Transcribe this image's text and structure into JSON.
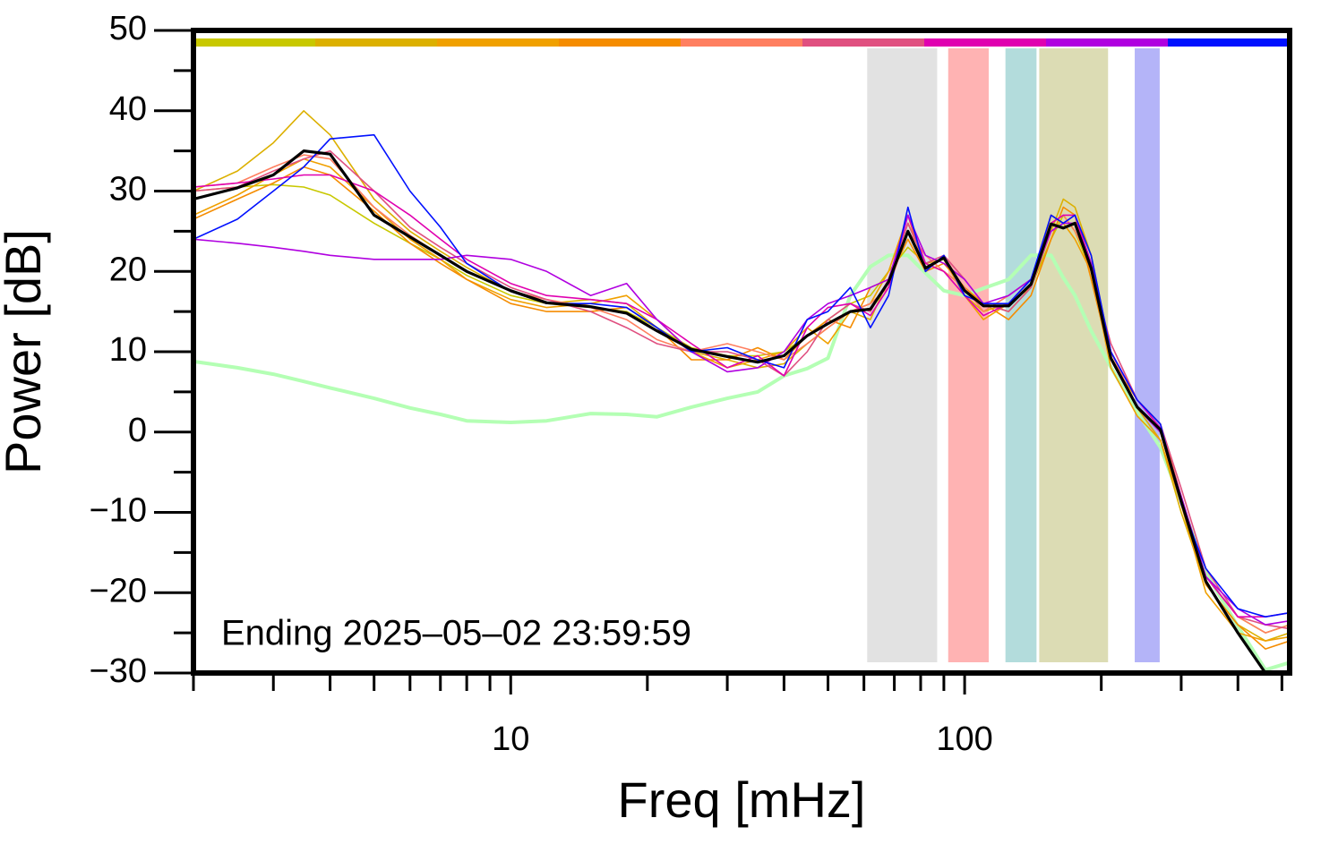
{
  "chart_data": {
    "type": "line",
    "x_label": "Freq [mHz]",
    "y_label": "Power [dB]",
    "annotation": "Ending 2025–05–02 23:59:59",
    "x_log": true,
    "xlim": [
      2,
      520
    ],
    "xticks": [
      10,
      100
    ],
    "xminor_ticks": [
      2,
      3,
      4,
      5,
      6,
      7,
      8,
      9,
      20,
      30,
      40,
      50,
      60,
      70,
      80,
      90,
      200,
      300,
      400,
      500
    ],
    "ylim": [
      -30,
      50
    ],
    "yticks": [
      {
        "value": -30,
        "label": "−30"
      },
      {
        "value": -20,
        "label": "−20"
      },
      {
        "value": -10,
        "label": "−10"
      },
      0,
      10,
      20,
      30,
      40,
      50
    ],
    "yminor_ticks": [
      -25,
      -15,
      -5,
      5,
      15,
      25,
      35,
      45
    ],
    "bands": [
      {
        "from": 61,
        "to": 87,
        "color": "#e2e2e2"
      },
      {
        "from": 92,
        "to": 113,
        "color": "#ffb3b3"
      },
      {
        "from": 123,
        "to": 144,
        "color": "#b3dcdc"
      },
      {
        "from": 146,
        "to": 207,
        "color": "#dcdcb4"
      },
      {
        "from": 237,
        "to": 269,
        "color": "#b4b4f8"
      }
    ],
    "x": [
      2,
      2.5,
      3,
      3.5,
      4,
      5,
      6,
      7,
      8,
      10,
      12,
      15,
      18,
      21,
      25,
      30,
      35,
      40,
      45,
      50,
      56,
      62,
      68,
      75,
      82,
      90,
      100,
      110,
      125,
      140,
      155,
      165,
      175,
      190,
      210,
      240,
      270,
      300,
      340,
      400,
      460,
      520
    ],
    "series": [
      {
        "color": "#b4ffb4",
        "width": 4,
        "values": [
          8.8,
          8,
          7.2,
          6.3,
          5.5,
          4.2,
          3,
          2.2,
          1.4,
          1.2,
          1.4,
          2.3,
          2.2,
          1.9,
          3.1,
          4.2,
          5,
          7,
          7.9,
          9.2,
          17,
          20.6,
          22,
          22,
          19.8,
          17.6,
          17,
          17.9,
          19,
          22,
          22,
          19.2,
          17,
          12.6,
          8.1,
          2.5,
          -1.9,
          -8.6,
          -17.5,
          -24.2,
          -29.6,
          -28.7
        ]
      },
      {
        "color": "#c8c800",
        "width": 1.6,
        "in_colorbar": true,
        "values": [
          30,
          30.5,
          30.8,
          30.5,
          29.5,
          26,
          23.5,
          21.5,
          19.5,
          17,
          16,
          15.5,
          15,
          13,
          10.5,
          9.5,
          9.5,
          10,
          12,
          14,
          16,
          17,
          20,
          23,
          21,
          20,
          18,
          16,
          15,
          18,
          24,
          27,
          25,
          20,
          9,
          3,
          0,
          -9,
          -18,
          -23,
          -25,
          -24
        ]
      },
      {
        "color": "#dcb000",
        "width": 1.6,
        "in_colorbar": true,
        "values": [
          30,
          32.5,
          36,
          40,
          37,
          29,
          25,
          22.5,
          20.5,
          17.5,
          16,
          16.5,
          16,
          13,
          10,
          9,
          8,
          8.5,
          11,
          13,
          15,
          14,
          19,
          26,
          21,
          21.5,
          17,
          15,
          16,
          19,
          25,
          29,
          28,
          22,
          10,
          3,
          -1,
          -10,
          -19,
          -24,
          -26,
          -25
        ]
      },
      {
        "color": "#f0a000",
        "width": 1.6,
        "in_colorbar": true,
        "values": [
          27,
          29.5,
          32,
          34,
          33,
          28,
          24,
          21.5,
          19,
          16.5,
          15.5,
          16,
          17,
          14,
          10,
          8,
          9,
          10,
          13,
          11,
          15,
          16,
          20,
          27,
          20,
          22,
          17,
          14,
          16,
          18,
          27,
          26,
          24,
          20,
          8,
          2,
          -1,
          -9,
          -20,
          -25,
          -26,
          -25.5
        ]
      },
      {
        "color": "#f58c00",
        "width": 1.6,
        "in_colorbar": true,
        "values": [
          26.5,
          29,
          31,
          33,
          32,
          27.5,
          23.5,
          21,
          19,
          16,
          15,
          15,
          15.5,
          13,
          9,
          9,
          10.5,
          9,
          12,
          14,
          13,
          18,
          19,
          24,
          20,
          21,
          18,
          16,
          14,
          17,
          24,
          28,
          27,
          19,
          9,
          4,
          1,
          -8,
          -19,
          -24,
          -27,
          -26
        ]
      },
      {
        "color": "#ff7f60",
        "width": 1.6,
        "in_colorbar": true,
        "values": [
          30.5,
          31,
          33,
          34.5,
          34,
          28,
          24.5,
          22,
          20,
          17.5,
          16.5,
          15.5,
          14,
          11.5,
          10,
          11,
          10,
          9,
          11,
          13,
          15,
          16,
          18,
          25,
          22,
          20,
          18,
          15,
          17,
          19,
          26,
          27,
          25,
          21,
          10,
          3,
          0,
          -9,
          -18,
          -23,
          -25,
          -24
        ]
      },
      {
        "color": "#e05080",
        "width": 1.6,
        "in_colorbar": true,
        "values": [
          30,
          30.5,
          32.5,
          34,
          35,
          30,
          25.5,
          23,
          21,
          18,
          16.5,
          15,
          13,
          11,
          10,
          10,
          9,
          7,
          10,
          14,
          16,
          15,
          19,
          26,
          21,
          22,
          19,
          16,
          15,
          18,
          25,
          26,
          27,
          20,
          11,
          4,
          1,
          -7,
          -17,
          -23,
          -24,
          -24.5
        ]
      },
      {
        "color": "#e000b0",
        "width": 1.6,
        "in_colorbar": true,
        "values": [
          30.5,
          31,
          31.5,
          32,
          32,
          30,
          27,
          24,
          21.5,
          18.5,
          17,
          16.5,
          16,
          14,
          11,
          8,
          9.5,
          7,
          13,
          15.5,
          16,
          14.5,
          18,
          27,
          21,
          20,
          17,
          14.5,
          16,
          19,
          26,
          27,
          27,
          21,
          10,
          4,
          0.5,
          -8,
          -18,
          -23,
          -23,
          -22.5
        ]
      },
      {
        "color": "#b000e0",
        "width": 1.6,
        "in_colorbar": true,
        "values": [
          24,
          23.5,
          23,
          22.5,
          22,
          21.5,
          21.5,
          21.5,
          22,
          21.5,
          20,
          17,
          18.5,
          14,
          10,
          7.5,
          8,
          10,
          14,
          16,
          17,
          18,
          19,
          27,
          22,
          21,
          19,
          16,
          17,
          19,
          25,
          26,
          26,
          21,
          9,
          3,
          0,
          -8,
          -18,
          -22,
          -24,
          -23.5
        ]
      },
      {
        "color": "#0010ff",
        "width": 1.6,
        "in_colorbar": true,
        "values": [
          24,
          26.5,
          30,
          33,
          36.5,
          37,
          30,
          25.5,
          21,
          17.5,
          16,
          16,
          15.5,
          13,
          10,
          10.5,
          9,
          8,
          14,
          15,
          18,
          13,
          17,
          28,
          20,
          22,
          17,
          16,
          16,
          19,
          27,
          26,
          27,
          22,
          10,
          4,
          1,
          -9,
          -17,
          -22,
          -23,
          -22.5
        ]
      },
      {
        "color": "#000000",
        "width": 3.2,
        "values": [
          29,
          30.4,
          32,
          35,
          34.6,
          27,
          24.3,
          22,
          20,
          17.6,
          16.1,
          15.6,
          14.8,
          12.6,
          10.3,
          9.4,
          8.7,
          9.5,
          12,
          13.5,
          15,
          15.3,
          18.7,
          25,
          20.4,
          21.7,
          17.6,
          15.7,
          15.7,
          18.4,
          25.9,
          25.4,
          26,
          20.4,
          9.2,
          3.1,
          0.3,
          -8.6,
          -18.6,
          -25,
          -30,
          -30
        ]
      }
    ]
  }
}
